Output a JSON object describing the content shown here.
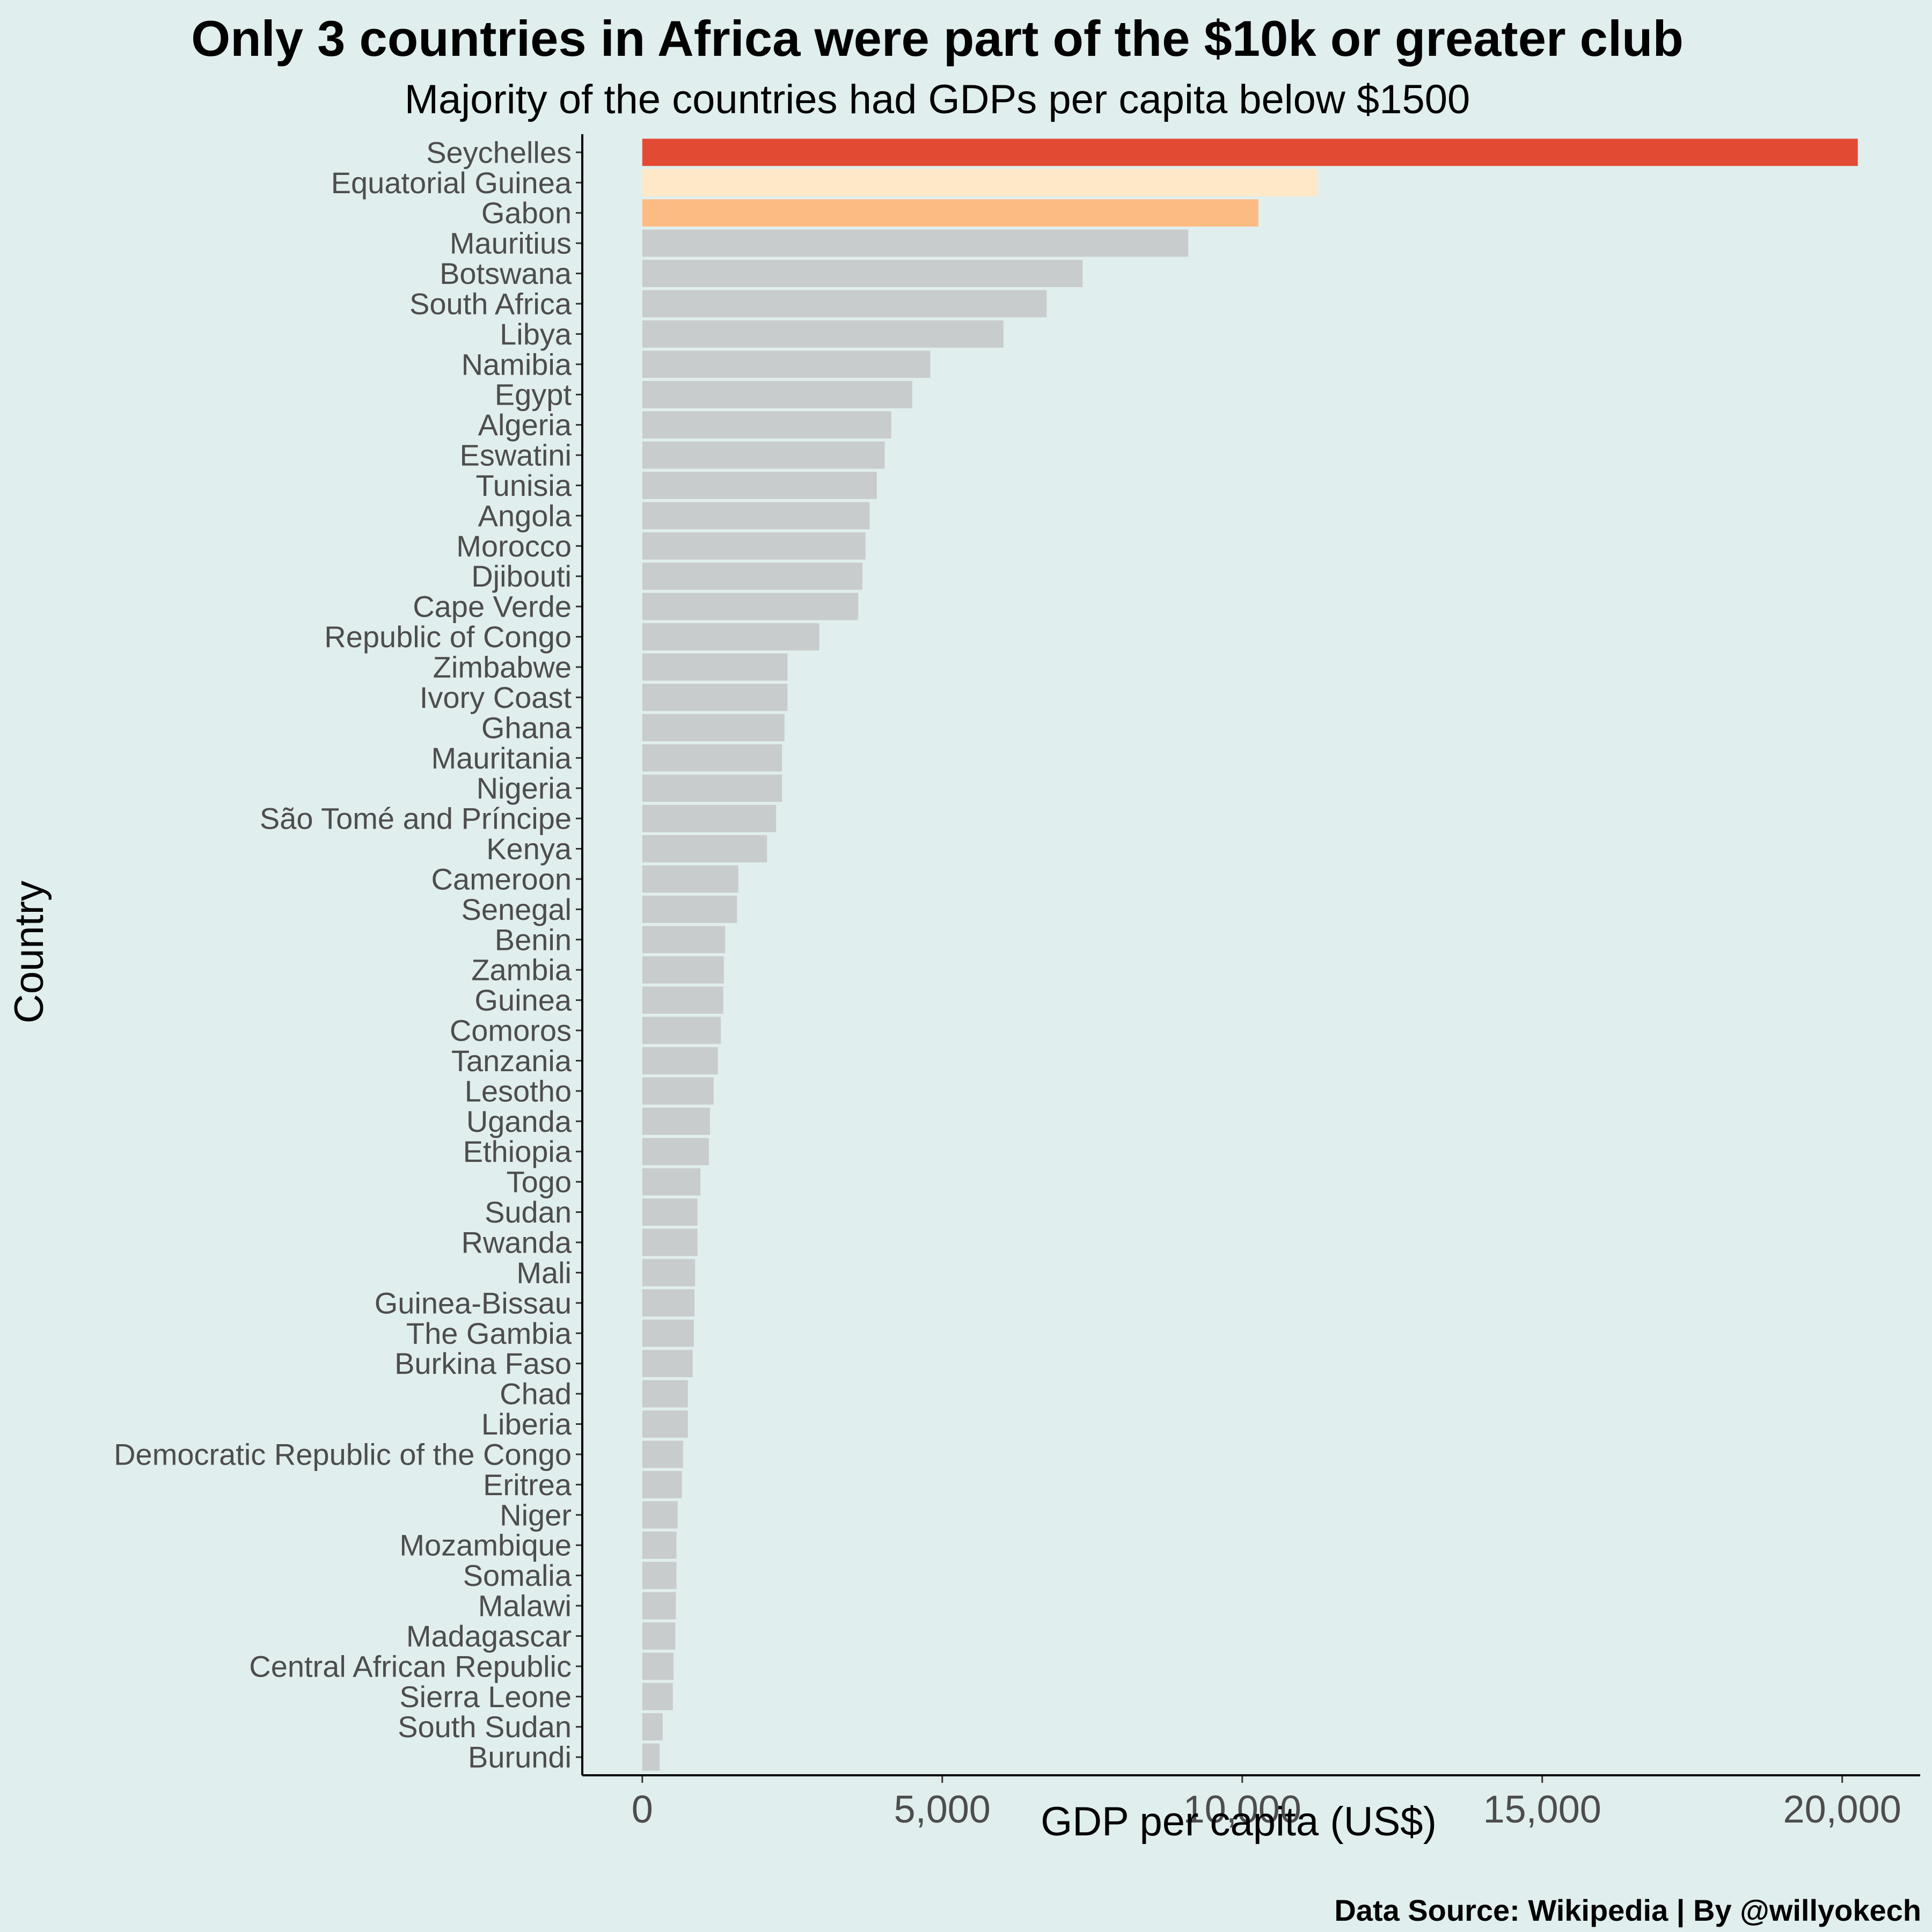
{
  "chart_data": {
    "type": "bar",
    "orientation": "horizontal",
    "title": "Only 3 countries in Africa were part of the $10k or greater club",
    "subtitle": "Majority of the countries had GDPs per capita below $1500",
    "xlabel": "GDP per capita (US$)",
    "ylabel": "Country",
    "caption": "Data Source: Wikipedia | By @willyokech",
    "xlim": [
      -1000,
      21300
    ],
    "xticks": [
      0,
      5000,
      10000,
      15000,
      20000
    ],
    "xtick_labels": [
      "0",
      "5,000",
      "10,000",
      "15,000",
      "20,000"
    ],
    "grid": false,
    "colors": {
      "background": "#e0eeed",
      "default_bar": "#c9cccc",
      "highlight_1": "#e34a33",
      "highlight_2": "#fee8c8",
      "highlight_3": "#fdbb84"
    },
    "categories": [
      "Seychelles",
      "Equatorial Guinea",
      "Gabon",
      "Mauritius",
      "Botswana",
      "South Africa",
      "Libya",
      "Namibia",
      "Egypt",
      "Algeria",
      "Eswatini",
      "Tunisia",
      "Angola",
      "Morocco",
      "Djibouti",
      "Cape Verde",
      "Republic of Congo",
      "Zimbabwe",
      "Ivory Coast",
      "Ghana",
      "Mauritania",
      "Nigeria",
      "São Tomé and Príncipe",
      "Kenya",
      "Cameroon",
      "Senegal",
      "Benin",
      "Zambia",
      "Guinea",
      "Comoros",
      "Tanzania",
      "Lesotho",
      "Uganda",
      "Ethiopia",
      "Togo",
      "Sudan",
      "Rwanda",
      "Mali",
      "Guinea-Bissau",
      "The Gambia",
      "Burkina Faso",
      "Chad",
      "Liberia",
      "Democratic Republic of the Congo",
      "Eritrea",
      "Niger",
      "Mozambique",
      "Somalia",
      "Malawi",
      "Madagascar",
      "Central African Republic",
      "Sierra Leone",
      "South Sudan",
      "Burundi"
    ],
    "values": [
      20260,
      11260,
      10270,
      9100,
      7340,
      6740,
      6020,
      4800,
      4500,
      4150,
      4040,
      3910,
      3790,
      3720,
      3670,
      3600,
      2950,
      2420,
      2420,
      2370,
      2330,
      2330,
      2230,
      2080,
      1600,
      1580,
      1380,
      1360,
      1350,
      1310,
      1260,
      1190,
      1130,
      1110,
      970,
      920,
      920,
      880,
      870,
      860,
      840,
      760,
      760,
      680,
      660,
      590,
      570,
      570,
      560,
      550,
      520,
      510,
      340,
      290
    ],
    "bar_colors": [
      "#e34a33",
      "#fee8c8",
      "#fdbb84",
      "#c9cccc",
      "#c9cccc",
      "#c9cccc",
      "#c9cccc",
      "#c9cccc",
      "#c9cccc",
      "#c9cccc",
      "#c9cccc",
      "#c9cccc",
      "#c9cccc",
      "#c9cccc",
      "#c9cccc",
      "#c9cccc",
      "#c9cccc",
      "#c9cccc",
      "#c9cccc",
      "#c9cccc",
      "#c9cccc",
      "#c9cccc",
      "#c9cccc",
      "#c9cccc",
      "#c9cccc",
      "#c9cccc",
      "#c9cccc",
      "#c9cccc",
      "#c9cccc",
      "#c9cccc",
      "#c9cccc",
      "#c9cccc",
      "#c9cccc",
      "#c9cccc",
      "#c9cccc",
      "#c9cccc",
      "#c9cccc",
      "#c9cccc",
      "#c9cccc",
      "#c9cccc",
      "#c9cccc",
      "#c9cccc",
      "#c9cccc",
      "#c9cccc",
      "#c9cccc",
      "#c9cccc",
      "#c9cccc",
      "#c9cccc",
      "#c9cccc",
      "#c9cccc",
      "#c9cccc",
      "#c9cccc",
      "#c9cccc",
      "#c9cccc"
    ]
  }
}
